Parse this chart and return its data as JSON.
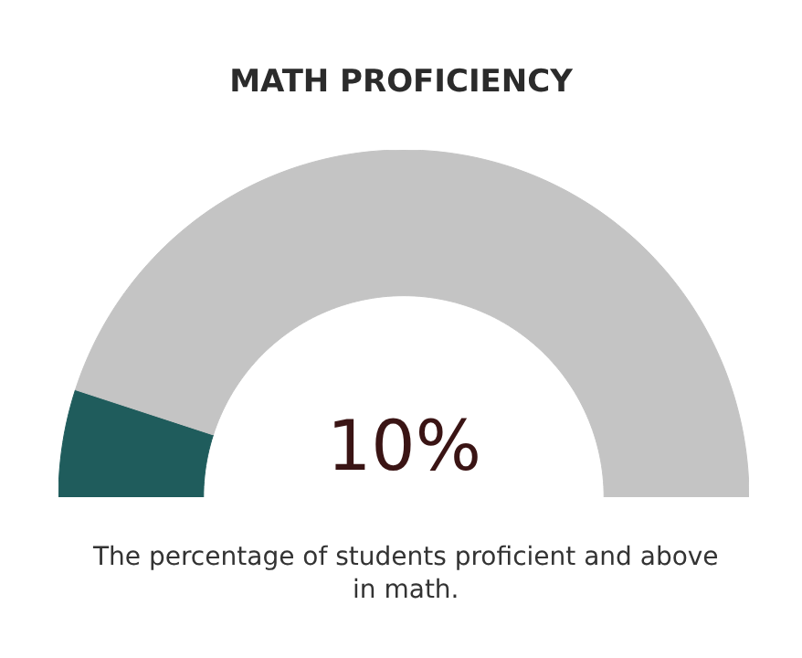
{
  "chart_data": {
    "type": "donut",
    "title": "MATH PROFICIENCY",
    "categories": [
      null,
      null
    ],
    "values": [
      10,
      90
    ],
    "colors": [
      "#1f5c5c",
      "#c4c4c4"
    ],
    "annotations": [
      "10%",
      "The percentage of students proficient and above in math."
    ]
  }
}
